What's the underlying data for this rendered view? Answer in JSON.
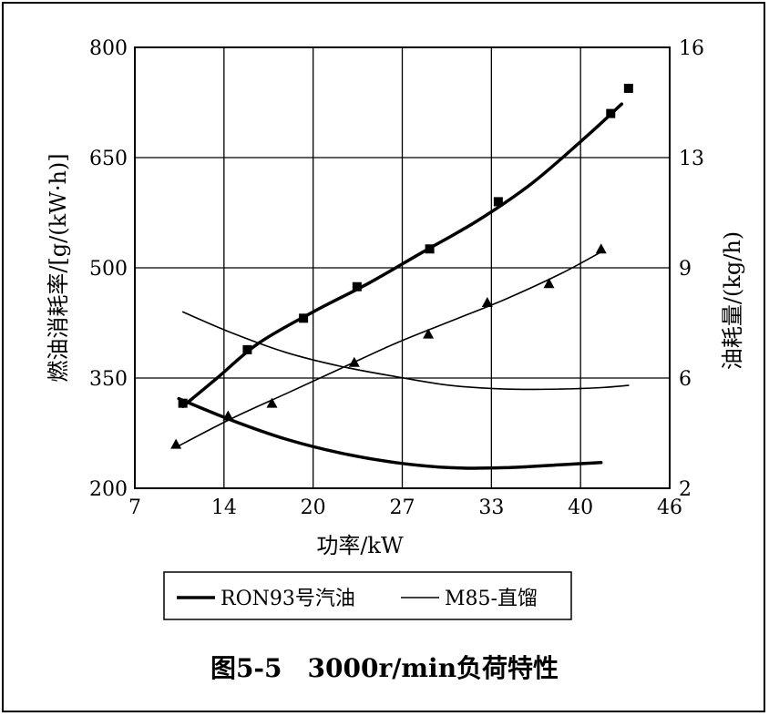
{
  "chart_data": {
    "type": "line",
    "caption": "图5-5　3000r/min负荷特性",
    "xlabel": "功率/kW",
    "ylabel_left": "燃油消耗率/[g/(kW·h)]",
    "ylabel_right": "油耗量/(kg/h)",
    "x_ticks": [
      "7",
      "14",
      "20",
      "27",
      "33",
      "40",
      "46"
    ],
    "y_left_ticks": [
      "200",
      "350",
      "500",
      "650",
      "800"
    ],
    "y_right_ticks": [
      "2",
      "6",
      "9",
      "13",
      "16"
    ],
    "xlim": [
      7,
      46
    ],
    "ylim_left": [
      200,
      800
    ],
    "ylim_right": [
      2,
      16
    ],
    "grid": true,
    "legend": {
      "placement": "bottom",
      "entries": [
        {
          "label": "RON93号汽油",
          "style": "thick"
        },
        {
          "label": "M85-直馏",
          "style": "thin"
        }
      ]
    },
    "series": [
      {
        "name": "RON93号汽油",
        "kind": "fuel-consumption-curve",
        "axis": "right",
        "style": "thick",
        "x": [
          10.5,
          13,
          16,
          20,
          24,
          28,
          32,
          36,
          40,
          42.5
        ],
        "y": [
          4.6,
          5.5,
          6.6,
          7.6,
          8.5,
          9.5,
          10.5,
          11.7,
          13.2,
          14.2
        ]
      },
      {
        "name": "RON93号汽油",
        "kind": "fuel-consumption-points",
        "axis": "right",
        "marker": "square",
        "x": [
          10.5,
          15.2,
          19.3,
          23.2,
          28.5,
          33.5,
          41.7,
          43
        ],
        "y": [
          4.7,
          6.4,
          7.4,
          8.4,
          9.6,
          11.1,
          13.9,
          14.7
        ]
      },
      {
        "name": "RON93号汽油",
        "kind": "bsfc-curve",
        "axis": "left",
        "style": "thick",
        "x": [
          10.2,
          14,
          18,
          22,
          26,
          30,
          34,
          38,
          41
        ],
        "y": [
          322,
          293,
          267,
          248,
          235,
          228,
          228,
          232,
          235
        ]
      },
      {
        "name": "M85-直馏",
        "kind": "fuel-consumption-curve",
        "axis": "right",
        "style": "thin",
        "x": [
          10,
          14,
          18,
          22,
          26,
          30,
          34,
          38,
          41
        ],
        "y": [
          3.3,
          4.2,
          5.0,
          5.8,
          6.6,
          7.3,
          8.0,
          8.8,
          9.5
        ]
      },
      {
        "name": "M85-直馏",
        "kind": "fuel-consumption-points",
        "axis": "right",
        "marker": "triangle",
        "x": [
          10,
          13.8,
          17,
          23,
          28.4,
          32.7,
          37.2,
          41
        ],
        "y": [
          3.4,
          4.3,
          4.7,
          6.0,
          6.9,
          7.9,
          8.5,
          9.6
        ]
      },
      {
        "name": "M85-直馏",
        "kind": "bsfc-curve",
        "axis": "left",
        "style": "thin",
        "x": [
          10.5,
          14,
          18,
          22,
          26,
          30,
          34,
          38,
          41,
          43
        ],
        "y": [
          440,
          412,
          385,
          366,
          352,
          340,
          335,
          335,
          337,
          340
        ]
      }
    ]
  }
}
